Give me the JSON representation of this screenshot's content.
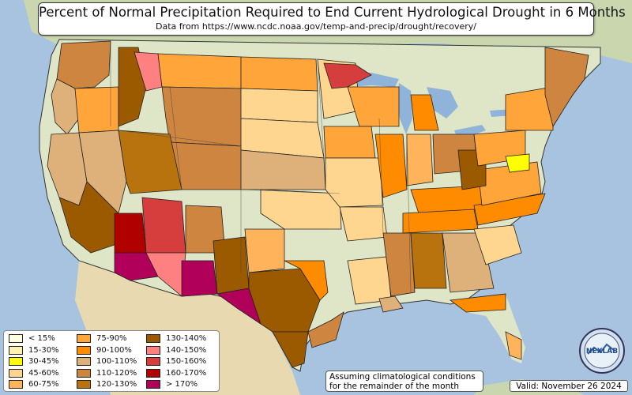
{
  "title": "Percent of Normal Precipitation Required to End Current Hydrological Drought in 6 Months",
  "subtitle": "Data from https://www.ncdc.noaa.gov/temp-and-precip/drought/recovery/",
  "legend": [
    {
      "label": "< 15%",
      "color": "#fffde0"
    },
    {
      "label": "15-30%",
      "color": "#fff2b0"
    },
    {
      "label": "30-45%",
      "color": "#ffff00"
    },
    {
      "label": "45-60%",
      "color": "#ffd690"
    },
    {
      "label": "60-75%",
      "color": "#ffb35a"
    },
    {
      "label": "75-90%",
      "color": "#ffa53a"
    },
    {
      "label": "90-100%",
      "color": "#ff8c00"
    },
    {
      "label": "100-110%",
      "color": "#deb07a"
    },
    {
      "label": "110-120%",
      "color": "#cd853f"
    },
    {
      "label": "120-130%",
      "color": "#b8730f"
    },
    {
      "label": "130-140%",
      "color": "#9b5a00"
    },
    {
      "label": "140-150%",
      "color": "#ff8080"
    },
    {
      "label": "150-160%",
      "color": "#d63e3e"
    },
    {
      "label": "160-170%",
      "color": "#b00000"
    },
    {
      "label": "> 170%",
      "color": "#b0005a"
    }
  ],
  "note": {
    "line1": "Assuming climatological conditions",
    "line2": "for the remainder of the month"
  },
  "valid_label": "Valid: November 26 2024",
  "logo_text": "NEXLAB",
  "colors": {
    "ocean": "#a7c3e0",
    "land": "#dfe6c8",
    "land_dark": "#c9d6ae",
    "mexico": "#e8d9b0",
    "lakes": "#8fb3d9"
  }
}
